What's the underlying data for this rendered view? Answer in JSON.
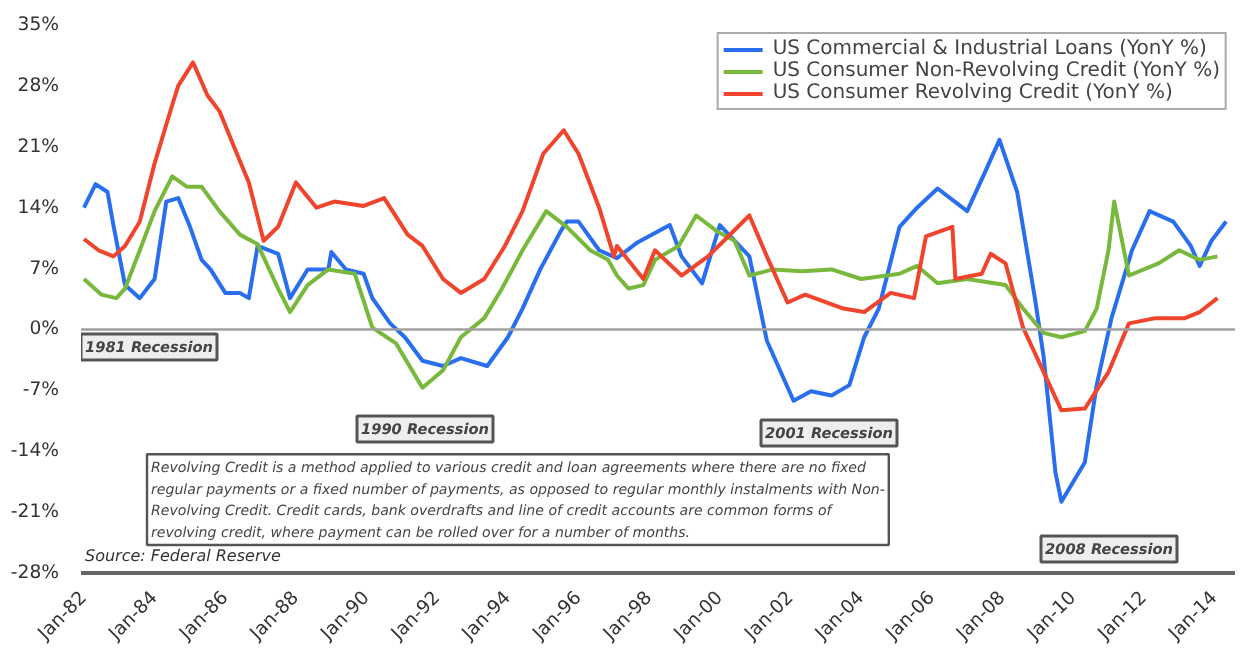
{
  "chart_data": {
    "type": "line",
    "x": [
      "1982-01",
      "1982-05",
      "1982-09",
      "1982-11",
      "1983-03",
      "1983-08",
      "1984-01",
      "1984-05",
      "1984-09",
      "1985-01",
      "1985-05",
      "1985-08",
      "1986-01",
      "1986-06",
      "1986-09",
      "1986-12",
      "1987-07",
      "1987-11",
      "1988-05",
      "1988-12",
      "1989-01",
      "1989-06",
      "1989-12",
      "1990-03",
      "1990-09",
      "1991-02",
      "1991-08",
      "1992-03",
      "1992-09",
      "1993-06",
      "1994-01",
      "1994-06",
      "1994-12",
      "1995-07",
      "1995-09",
      "1996-01",
      "1996-08",
      "1997-02",
      "1997-09",
      "1998-08",
      "1998-12",
      "1999-07",
      "2000-01",
      "2000-11",
      "2001-05",
      "2002-02",
      "2002-08",
      "2003-03",
      "2003-09",
      "2004-02",
      "2004-07",
      "2005-02",
      "2005-08",
      "2006-03",
      "2007-01",
      "2007-07",
      "2007-12",
      "2008-06",
      "2008-12",
      "2009-03",
      "2009-07",
      "2009-09",
      "2010-05",
      "2010-09",
      "2011-02",
      "2011-09",
      "2012-03",
      "2012-11",
      "2013-05",
      "2013-08",
      "2013-12",
      "2014-05"
    ],
    "series": [
      {
        "name": "US Commercial & Industrial Loans (YonY %)",
        "color": "#2a6ef0",
        "values": [
          14,
          16.7,
          15.8,
          12,
          5.1,
          3.6,
          5.8,
          14.7,
          15.1,
          11.8,
          8,
          6.9,
          4.2,
          4.2,
          3.6,
          9.6,
          8.7,
          3.6,
          6.9,
          6.9,
          8.9,
          6.9,
          6.4,
          3.6,
          0.7,
          -0.9,
          -3.6,
          -4.2,
          -3.3,
          -4.2,
          -0.9,
          2.4,
          6.9,
          11.3,
          12.4,
          12.4,
          9.1,
          8.2,
          10,
          12,
          8.4,
          5.3,
          12,
          8.4,
          -1.3,
          -8.2,
          -7.1,
          -7.6,
          -6.4,
          -0.9,
          2.4,
          11.8,
          14,
          16.2,
          13.6,
          18,
          21.8,
          15.8,
          3.6,
          -3.1,
          -16.4,
          -19.8,
          -15.3,
          -6.4,
          1.3,
          9.1,
          13.6,
          12.4,
          9.6,
          7.3,
          10.2,
          12.4
        ]
      },
      {
        "name": "US Consumer Non-Revolving Credit (YonY %)",
        "color": "#78b83c",
        "x": [
          "1982-01",
          "1982-07",
          "1982-12",
          "1983-03",
          "1983-08",
          "1984-01",
          "1984-07",
          "1984-12",
          "1985-05",
          "1985-11",
          "1986-06",
          "1986-12",
          "1987-07",
          "1987-11",
          "1988-05",
          "1988-12",
          "1989-09",
          "1990-03",
          "1990-11",
          "1991-08",
          "1992-03",
          "1992-09",
          "1993-05",
          "1993-11",
          "1994-06",
          "1995-02",
          "1995-09",
          "1996-05",
          "1996-11",
          "1997-02",
          "1997-06",
          "1997-11",
          "1998-03",
          "1998-11",
          "1999-05",
          "1999-12",
          "2000-06",
          "2000-11",
          "2001-07",
          "2002-05",
          "2003-03",
          "2004-01",
          "2005-02",
          "2005-08",
          "2006-03",
          "2007-01",
          "2008-02",
          "2008-08",
          "2009-03",
          "2009-09",
          "2010-05",
          "2010-09",
          "2011-01",
          "2011-03",
          "2011-08",
          "2012-06",
          "2013-01",
          "2013-08",
          "2014-02"
        ],
        "values": [
          5.8,
          4,
          3.6,
          4.7,
          9.1,
          13.6,
          17.6,
          16.4,
          16.4,
          13.6,
          10.9,
          9.8,
          4.7,
          2,
          5.1,
          6.9,
          6.4,
          0.2,
          -1.6,
          -6.7,
          -4.7,
          -0.9,
          1.3,
          4.7,
          9.1,
          13.6,
          11.8,
          9.1,
          8,
          6.2,
          4.7,
          5.1,
          8,
          9.6,
          13.1,
          11.3,
          10.2,
          6.2,
          6.9,
          6.7,
          6.9,
          5.8,
          6.4,
          7.3,
          5.3,
          5.8,
          5.1,
          2.4,
          -0.4,
          -0.9,
          -0.2,
          2.4,
          9.1,
          14.7,
          6.2,
          7.6,
          9.1,
          8,
          8.4
        ]
      },
      {
        "name": "US Consumer Revolving Credit (YonY %)",
        "color": "#f0442c",
        "x": [
          "1982-01",
          "1982-06",
          "1982-11",
          "1983-03",
          "1983-08",
          "1984-01",
          "1984-07",
          "1984-09",
          "1985-02",
          "1985-07",
          "1985-11",
          "1986-05",
          "1986-09",
          "1987-02",
          "1987-07",
          "1988-01",
          "1988-08",
          "1989-02",
          "1989-12",
          "1990-07",
          "1991-03",
          "1991-08",
          "1992-03",
          "1992-09",
          "1993-05",
          "1993-12",
          "1994-06",
          "1995-01",
          "1995-08",
          "1996-01",
          "1996-08",
          "1997-01",
          "1997-02",
          "1997-11",
          "1998-03",
          "1998-12",
          "1999-09",
          "2000-11",
          "2001-05",
          "2001-12",
          "2002-06",
          "2003-07",
          "2004-02",
          "2004-11",
          "2005-07",
          "2005-11",
          "2006-08",
          "2006-09",
          "2007-06",
          "2007-09",
          "2008-02",
          "2008-08",
          "2008-11",
          "2009-09",
          "2010-05",
          "2011-01",
          "2011-08",
          "2012-05",
          "2013-03",
          "2013-08",
          "2014-02"
        ],
        "values": [
          10.4,
          9.1,
          8.4,
          9.6,
          12.4,
          19.1,
          25.8,
          28,
          30.7,
          26.9,
          25.1,
          20.2,
          16.9,
          10.2,
          11.8,
          16.9,
          14,
          14.7,
          14.2,
          15.1,
          10.9,
          9.6,
          5.8,
          4.2,
          5.8,
          9.6,
          13.6,
          20.2,
          22.9,
          20.2,
          14,
          8.4,
          9.6,
          5.8,
          9.1,
          6.2,
          8.4,
          13.1,
          8.4,
          3.1,
          4,
          2.4,
          2,
          4.2,
          3.6,
          10.7,
          11.8,
          5.8,
          6.4,
          8.7,
          7.6,
          0.2,
          -2,
          -9.3,
          -9.1,
          -4.9,
          0.7,
          1.3,
          1.3,
          2,
          3.6
        ]
      }
    ],
    "xlim": [
      "1981-12",
      "2014-08"
    ],
    "xticks": [
      {
        "value": "1982-01",
        "label": "Jan-82"
      },
      {
        "value": "1984-01",
        "label": "Jan-84"
      },
      {
        "value": "1986-01",
        "label": "Jan-86"
      },
      {
        "value": "1988-01",
        "label": "Jan-88"
      },
      {
        "value": "1990-01",
        "label": "Jan-90"
      },
      {
        "value": "1992-01",
        "label": "Jan-92"
      },
      {
        "value": "1994-01",
        "label": "Jan-94"
      },
      {
        "value": "1996-01",
        "label": "Jan-96"
      },
      {
        "value": "1998-01",
        "label": "Jan-98"
      },
      {
        "value": "2000-01",
        "label": "Jan-00"
      },
      {
        "value": "2002-01",
        "label": "Jan-02"
      },
      {
        "value": "2004-01",
        "label": "Jan-04"
      },
      {
        "value": "2006-01",
        "label": "Jan-06"
      },
      {
        "value": "2008-01",
        "label": "Jan-08"
      },
      {
        "value": "2010-01",
        "label": "Jan-10"
      },
      {
        "value": "2012-01",
        "label": "Jan-12"
      },
      {
        "value": "2014-01",
        "label": "Jan-14"
      }
    ],
    "ylim": [
      -28,
      35
    ],
    "yticks": [
      {
        "value": -28,
        "label": "-28%"
      },
      {
        "value": -21,
        "label": "-21%"
      },
      {
        "value": -14,
        "label": "-14%"
      },
      {
        "value": -7,
        "label": "-7%"
      },
      {
        "value": 0,
        "label": "0%"
      },
      {
        "value": 7,
        "label": "7%"
      },
      {
        "value": 14,
        "label": "14%"
      },
      {
        "value": 21,
        "label": "21%"
      },
      {
        "value": 28,
        "label": "28%"
      },
      {
        "value": 35,
        "label": "35%"
      }
    ],
    "ref_lines": [
      {
        "axis": "y",
        "value": 0,
        "color": "#a0a0a0"
      }
    ],
    "annotations": [
      "1981 Recession",
      "1990 Recession",
      "2001 Recession",
      "2008 Recession",
      "Revolving Credit is a method applied to various credit and loan agreements where there are no fixed regular payments or a fixed number of payments, as opposed to regular monthly instalments with Non-Revolving Credit. Credit cards, bank overdrafts and line of credit accounts are common forms of revolving credit, where payment can be rolled over for a number of months.",
      "Source: Federal Reserve"
    ],
    "legend": "top right",
    "grid": false,
    "line_style": "solid",
    "marker": "none"
  }
}
